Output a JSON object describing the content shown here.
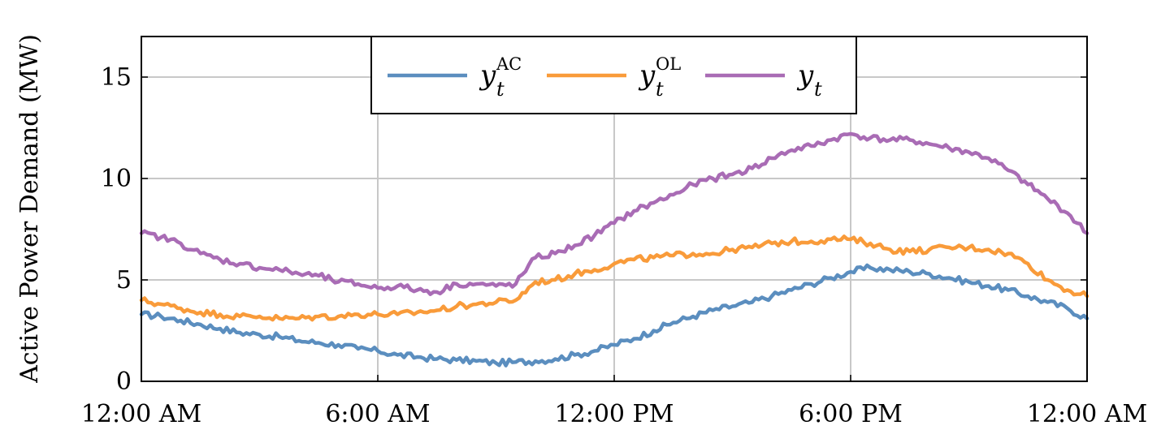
{
  "chart_data": {
    "type": "line",
    "xlabel": "",
    "ylabel": "Active Power Demand (MW)",
    "xlim": [
      0,
      24
    ],
    "ylim": [
      0,
      17
    ],
    "grid": true,
    "legend_position": "top-center",
    "x_ticks": [
      {
        "value": 0,
        "label": "12:00 AM"
      },
      {
        "value": 6,
        "label": "6:00 AM"
      },
      {
        "value": 12,
        "label": "12:00 PM"
      },
      {
        "value": 18,
        "label": "6:00 PM"
      },
      {
        "value": 24,
        "label": "12:00 AM"
      }
    ],
    "y_ticks": [
      {
        "value": 0,
        "label": "0"
      },
      {
        "value": 5,
        "label": "5"
      },
      {
        "value": 10,
        "label": "10"
      },
      {
        "value": 15,
        "label": "15"
      }
    ],
    "x": [
      0,
      0.5,
      1,
      1.5,
      2,
      2.5,
      3,
      3.5,
      4,
      4.5,
      5,
      5.5,
      6,
      6.5,
      7,
      7.5,
      8,
      8.5,
      9,
      9.5,
      10,
      10.5,
      11,
      11.5,
      12,
      12.5,
      13,
      13.5,
      14,
      14.5,
      15,
      15.5,
      16,
      16.5,
      17,
      17.5,
      18,
      18.5,
      19,
      19.5,
      20,
      20.5,
      21,
      21.5,
      22,
      22.5,
      23,
      23.5,
      24
    ],
    "series": [
      {
        "name": "y_t^AC",
        "legend_base": "y",
        "legend_sub": "t",
        "legend_sup": "AC",
        "color": "#5b8ebf",
        "values": [
          3.3,
          3.2,
          3.0,
          2.8,
          2.6,
          2.4,
          2.3,
          2.2,
          2.0,
          1.9,
          1.8,
          1.6,
          1.5,
          1.3,
          1.2,
          1.1,
          1.05,
          1.0,
          0.9,
          0.95,
          1.0,
          1.1,
          1.3,
          1.5,
          1.8,
          2.1,
          2.5,
          2.9,
          3.2,
          3.5,
          3.7,
          3.9,
          4.2,
          4.5,
          4.8,
          5.1,
          5.4,
          5.6,
          5.5,
          5.4,
          5.3,
          5.1,
          4.9,
          4.7,
          4.5,
          4.2,
          3.9,
          3.6,
          3.1
        ]
      },
      {
        "name": "y_t^OL",
        "legend_base": "y",
        "legend_sub": "t",
        "legend_sup": "OL",
        "color": "#f99b3a",
        "values": [
          4.0,
          3.8,
          3.6,
          3.4,
          3.3,
          3.2,
          3.2,
          3.1,
          3.1,
          3.2,
          3.2,
          3.3,
          3.3,
          3.3,
          3.4,
          3.5,
          3.7,
          3.8,
          3.9,
          4.0,
          4.9,
          5.0,
          5.3,
          5.5,
          5.8,
          6.0,
          6.1,
          6.2,
          6.3,
          6.3,
          6.5,
          6.6,
          6.8,
          6.9,
          6.9,
          7.0,
          7.0,
          6.8,
          6.5,
          6.4,
          6.5,
          6.6,
          6.6,
          6.5,
          6.3,
          5.8,
          5.0,
          4.5,
          4.2
        ]
      },
      {
        "name": "y_t",
        "legend_base": "y",
        "legend_sub": "t",
        "legend_sup": "",
        "color": "#a96cb5",
        "values": [
          7.3,
          7.1,
          6.8,
          6.3,
          6.0,
          5.8,
          5.6,
          5.5,
          5.3,
          5.2,
          4.9,
          4.8,
          4.6,
          4.7,
          4.5,
          4.4,
          4.8,
          4.8,
          4.7,
          4.8,
          6.1,
          6.3,
          6.7,
          7.2,
          7.8,
          8.4,
          8.8,
          9.2,
          9.7,
          10.0,
          10.2,
          10.5,
          11.0,
          11.4,
          11.6,
          11.9,
          12.2,
          12.0,
          11.9,
          11.9,
          11.7,
          11.5,
          11.3,
          11.0,
          10.4,
          9.7,
          9.0,
          8.3,
          7.3
        ]
      }
    ]
  }
}
